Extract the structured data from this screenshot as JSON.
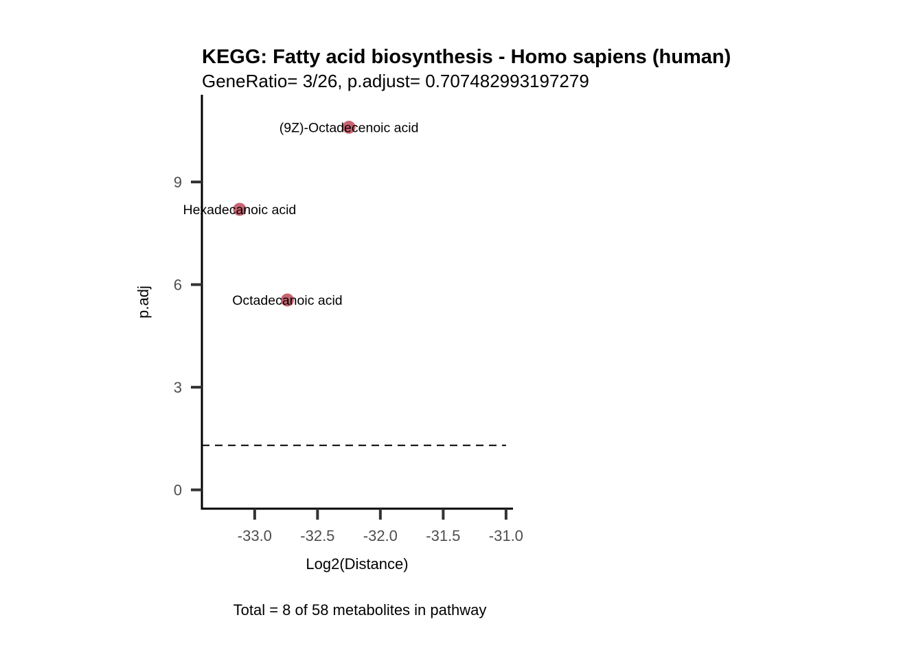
{
  "chart_data": {
    "type": "scatter",
    "title": "KEGG: Fatty acid biosynthesis - Homo sapiens (human)",
    "subtitle": "GeneRatio= 3/26, p.adjust= 0.707482993197279",
    "xlabel": "Log2(Distance)",
    "ylabel": "p.adj",
    "caption": "Total = 8 of 58 metabolites in pathway",
    "xlim": [
      -33.42,
      -30.95
    ],
    "ylim": [
      -0.55,
      11.55
    ],
    "x_ticks": [
      -33.0,
      -32.5,
      -32.0,
      -31.5,
      -31.0
    ],
    "x_tick_labels": [
      "-33.0",
      "-32.5",
      "-32.0",
      "-31.5",
      "-31.0"
    ],
    "y_ticks": [
      0,
      3,
      6,
      9
    ],
    "y_tick_labels": [
      "0",
      "3",
      "6",
      "9"
    ],
    "threshold_line": {
      "y": 1.3,
      "style": "dashed"
    },
    "point_color": "#c0505f",
    "points": [
      {
        "label": "(9Z)-Octadecenoic acid",
        "x": -32.25,
        "y": 10.6
      },
      {
        "label": "Hexadecanoic acid",
        "x": -33.12,
        "y": 8.2
      },
      {
        "label": "Octadecanoic acid",
        "x": -32.74,
        "y": 5.55
      }
    ],
    "grid": false,
    "legend": "none"
  }
}
